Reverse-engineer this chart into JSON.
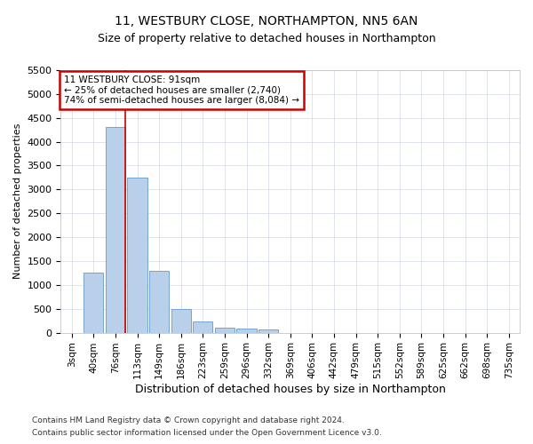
{
  "title": "11, WESTBURY CLOSE, NORTHAMPTON, NN5 6AN",
  "subtitle": "Size of property relative to detached houses in Northampton",
  "xlabel": "Distribution of detached houses by size in Northampton",
  "ylabel": "Number of detached properties",
  "footnote1": "Contains HM Land Registry data © Crown copyright and database right 2024.",
  "footnote2": "Contains public sector information licensed under the Open Government Licence v3.0.",
  "bar_color": "#b8d0ea",
  "bar_edge_color": "#6699cc",
  "grid_color": "#d0d8e8",
  "annotation_box_color": "#cc0000",
  "red_line_color": "#cc0000",
  "categories": [
    "3sqm",
    "40sqm",
    "76sqm",
    "113sqm",
    "149sqm",
    "186sqm",
    "223sqm",
    "259sqm",
    "296sqm",
    "332sqm",
    "369sqm",
    "406sqm",
    "442sqm",
    "479sqm",
    "515sqm",
    "552sqm",
    "589sqm",
    "625sqm",
    "662sqm",
    "698sqm",
    "735sqm"
  ],
  "values": [
    0,
    1250,
    4300,
    3250,
    1300,
    500,
    230,
    100,
    80,
    70,
    0,
    0,
    0,
    0,
    0,
    0,
    0,
    0,
    0,
    0,
    0
  ],
  "red_line_x": 2.45,
  "annotation_line1": "11 WESTBURY CLOSE: 91sqm",
  "annotation_line2": "← 25% of detached houses are smaller (2,740)",
  "annotation_line3": "74% of semi-detached houses are larger (8,084) →",
  "ylim": [
    0,
    5500
  ],
  "yticks": [
    0,
    500,
    1000,
    1500,
    2000,
    2500,
    3000,
    3500,
    4000,
    4500,
    5000,
    5500
  ],
  "background_color": "#ffffff",
  "title_fontsize": 10,
  "subtitle_fontsize": 9
}
